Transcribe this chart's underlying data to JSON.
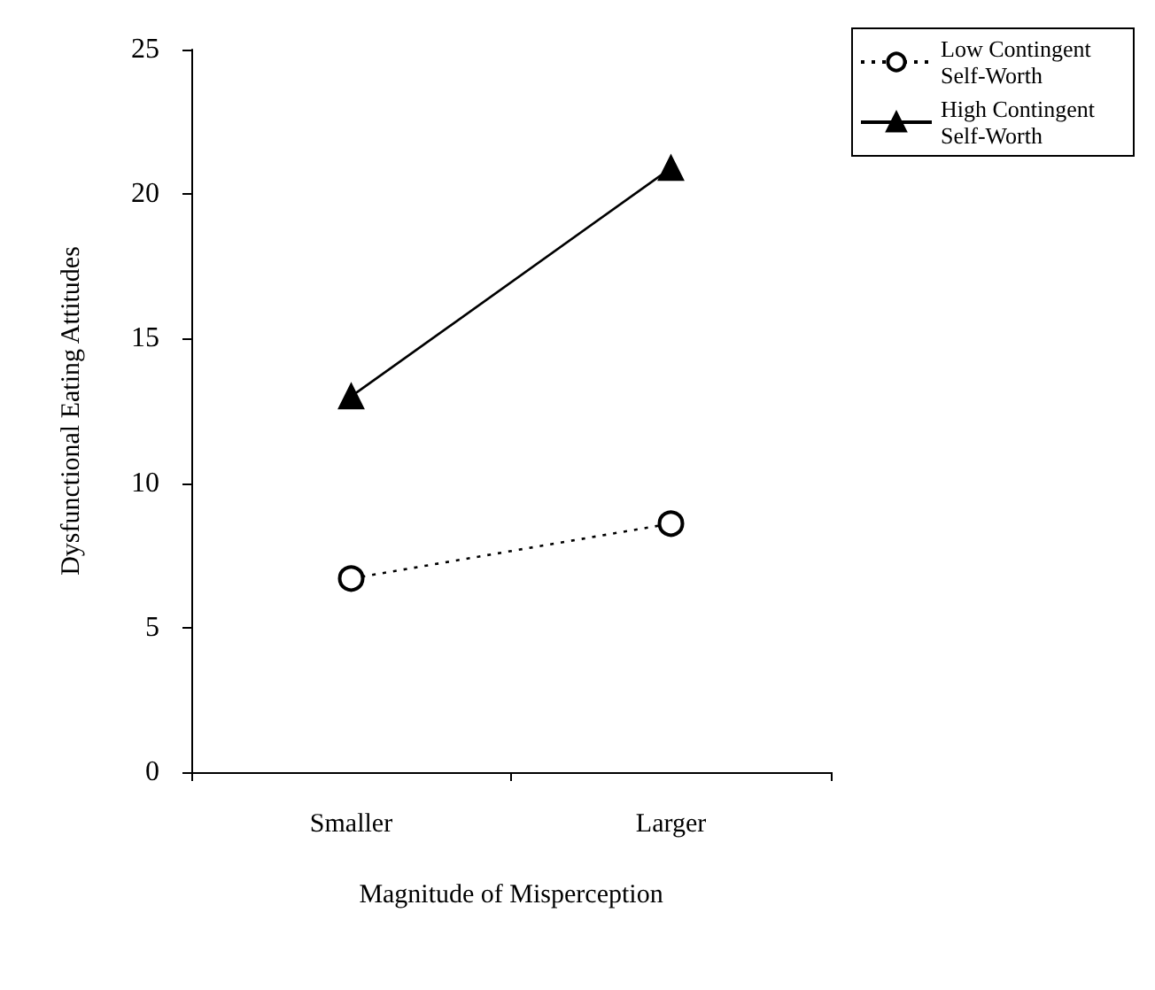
{
  "chart_data": {
    "type": "line",
    "xlabel": "Magnitude of Misperception",
    "ylabel": "Dysfunctional Eating Attitudes",
    "categories": [
      "Smaller",
      "Larger"
    ],
    "series": [
      {
        "name": "Low Contingent Self-Worth",
        "color": "#000000",
        "values": [
          6.7,
          8.6
        ],
        "marker": "circle",
        "line_style": "dotted"
      },
      {
        "name": "High Contingent Self-Worth",
        "color": "#000000",
        "values": [
          13,
          20.9
        ],
        "marker": "triangle",
        "line_style": "solid"
      }
    ],
    "ylim": [
      0,
      25
    ],
    "yticks": [
      0,
      5,
      10,
      15,
      20,
      25
    ],
    "grid": false,
    "legend": "top right"
  }
}
